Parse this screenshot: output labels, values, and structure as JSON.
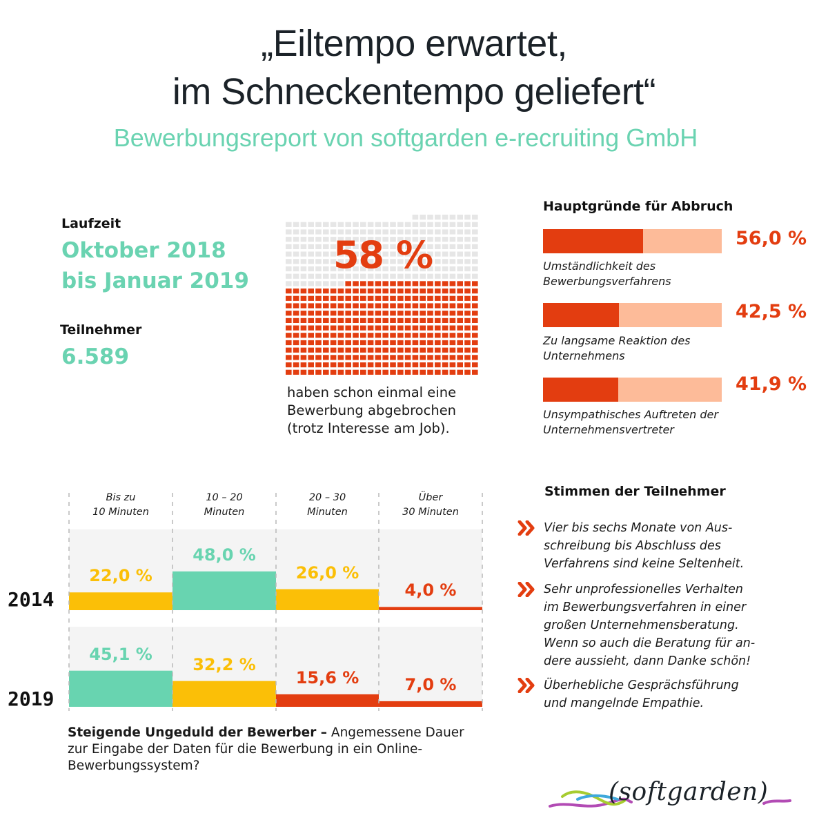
{
  "header": {
    "title_line1": "„Eiltempo erwartet,",
    "title_line2": "im Schneckentempo geliefert“",
    "subtitle": "Bewerbungsreport von softgarden e-recruiting GmbH"
  },
  "stats": {
    "runtime_label": "Laufzeit",
    "runtime_value_line1": "Oktober 2018",
    "runtime_value_line2": "bis Januar 2019",
    "participants_label": "Teilnehmer",
    "participants_value": "6.589"
  },
  "waffle": {
    "percent_label": "58 %",
    "percent": 58,
    "caption_line1": "haben schon einmal eine",
    "caption_line2": "Bewerbung abgebrochen",
    "caption_line3": "(trotz Interesse am Job).",
    "colors": {
      "filled": "#e33d10",
      "empty": "#e6e6e6"
    }
  },
  "reasons": {
    "heading": "Hauptgründe für Abbruch",
    "items": [
      {
        "value": 56.0,
        "value_label": "56,0 %",
        "label_line1": "Umständlichkeit des",
        "label_line2": "Bewerbungsverfahrens"
      },
      {
        "value": 42.5,
        "value_label": "42,5 %",
        "label_line1": "Zu langsame Reaktion des",
        "label_line2": "Unternehmens"
      },
      {
        "value": 41.9,
        "value_label": "41,9 %",
        "label_line1": "Unsympathisches Auftreten der",
        "label_line2": "Unternehmensvertreter"
      }
    ],
    "colors": {
      "fill": "#e33d10",
      "track": "#fdbb99"
    }
  },
  "chart_data": {
    "type": "bar",
    "title": "Steigende Ungeduld der Bewerber",
    "categories": [
      "Bis zu 10 Minuten",
      "10 – 20 Minuten",
      "20 – 30 Minuten",
      "Über 30 Minuten"
    ],
    "category_lines": [
      [
        "Bis zu",
        "10 Minuten"
      ],
      [
        "10 – 20",
        "Minuten"
      ],
      [
        "20 – 30",
        "Minuten"
      ],
      [
        "Über",
        "30 Minuten"
      ]
    ],
    "series": [
      {
        "name": "2014",
        "values": [
          22.0,
          48.0,
          26.0,
          4.0
        ],
        "labels": [
          "22,0 %",
          "48,0 %",
          "26,0 %",
          "4,0 %"
        ]
      },
      {
        "name": "2019",
        "values": [
          45.1,
          32.2,
          15.6,
          7.0
        ],
        "labels": [
          "45,1 %",
          "32,2 %",
          "15,6 %",
          "7,0 %"
        ]
      }
    ],
    "ylim": [
      0,
      100
    ],
    "unit": "%",
    "color_scheme": "rank-based: largest = green, second = yellow, smaller = red",
    "colors": {
      "green": "#68d4b0",
      "yellow": "#fbbf07",
      "red": "#e33d10",
      "panel": "#f4f4f4",
      "divider": "#b8b8b8"
    }
  },
  "chart_caption": {
    "bold": "Steigende Ungeduld der Bewerber –",
    "text": " Angemessene Dauer zur Eingabe der Daten für die Bewerbung in ein Online-Bewerbungssystem?"
  },
  "voices": {
    "heading": "Stimmen der Teilnehmer",
    "icon": "double-chevron-right",
    "quotes": [
      {
        "lines": [
          "Vier bis sechs Monate von Aus-",
          "schreibung bis Abschluss des",
          "Verfahrens sind keine Seltenheit."
        ]
      },
      {
        "lines": [
          "Sehr unprofessionelles Verhalten",
          "im Bewerbungsverfahren in einer",
          "großen Unternehmensberatung.",
          "Wenn so auch die Beratung für an-",
          "dere aussieht, dann Danke schön!"
        ]
      },
      {
        "lines": [
          "Überhebliche Gesprächsführung",
          "und mangelnde Empathie."
        ]
      }
    ]
  },
  "logo": {
    "text": "(softgarden)"
  }
}
